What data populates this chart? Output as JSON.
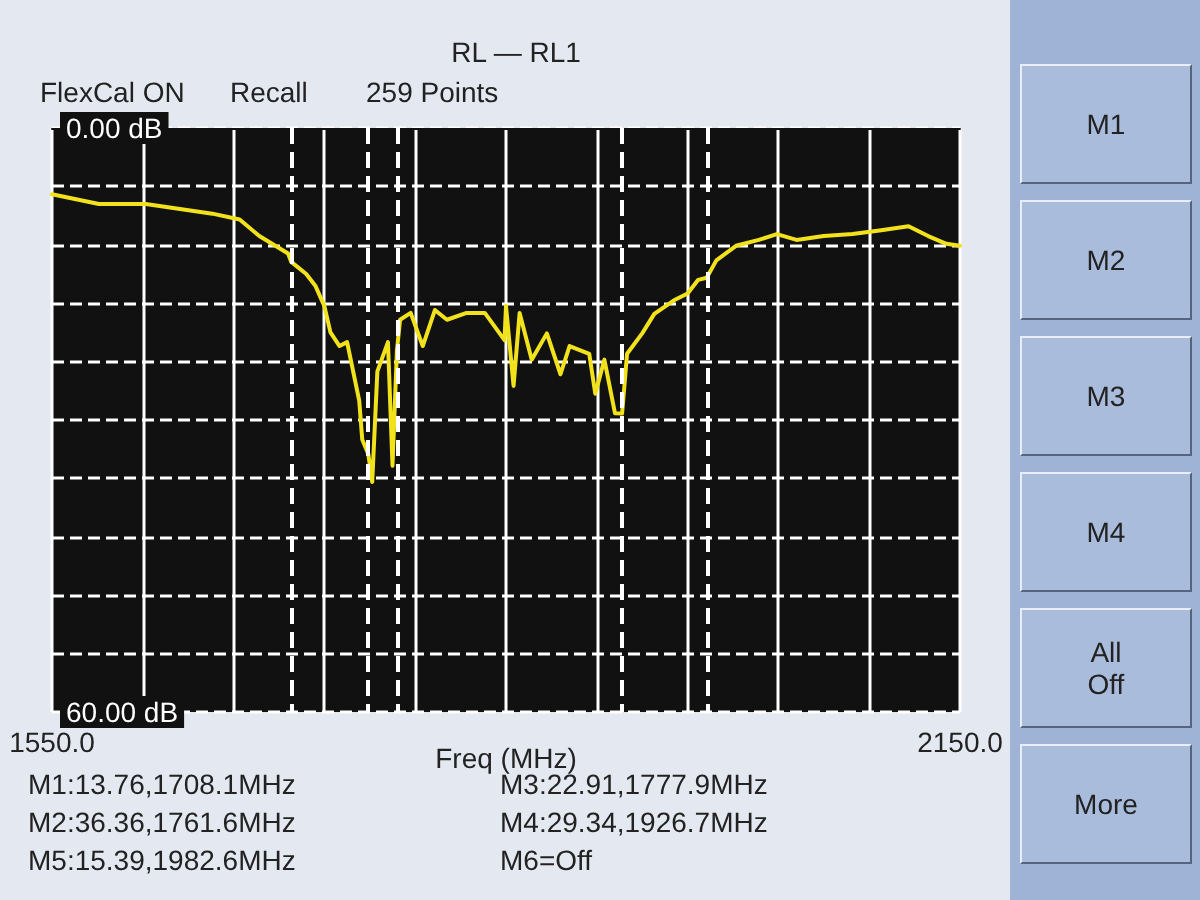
{
  "chart_data": {
    "type": "line",
    "title": "RL — RL1",
    "xlabel": "Freq (MHz)",
    "annotations": [
      "FlexCal ON",
      "Recall",
      "259 Points",
      "M1:13.76,1708.1MHz",
      "M3:22.91,1777.9MHz",
      "M2:36.36,1761.6MHz",
      "M4:29.34,1926.7MHz",
      "M5:15.39,1982.6MHz",
      "M6=Off",
      "M1",
      "M2",
      "M3",
      "M4",
      "All\nOff",
      "More"
    ],
    "x": [
      1550,
      1581,
      1612,
      1656,
      1674,
      1687,
      1706,
      1708.1,
      1718,
      1724,
      1730,
      1734,
      1740,
      1745,
      1753,
      1755,
      1759,
      1761.6,
      1765,
      1772,
      1775,
      1777.9,
      1780,
      1787,
      1795,
      1803,
      1811,
      1824,
      1836,
      1849,
      1850,
      1855,
      1859,
      1867,
      1877,
      1886,
      1892,
      1905,
      1909,
      1915,
      1922,
      1926.7,
      1930,
      1940,
      1948,
      1961,
      1970,
      1977,
      1982.6,
      1989,
      2002,
      2017,
      2029,
      2042,
      2060,
      2079,
      2098,
      2116,
      2129,
      2141,
      2150
    ],
    "series": [
      {
        "color": "#f2e21c",
        "values": [
          6.8,
          7.8,
          7.8,
          8.8,
          9.4,
          11.1,
          12.9,
          13.76,
          15,
          16.2,
          18.3,
          21,
          22.4,
          22,
          28,
          32,
          33.5,
          36.36,
          25,
          22,
          34.7,
          22.91,
          19.7,
          19,
          22.4,
          18.7,
          19.7,
          19,
          19,
          21.8,
          18.3,
          26.5,
          19,
          23.8,
          21.1,
          25.3,
          22.4,
          23.2,
          27.3,
          23.8,
          29.3,
          29.34,
          23.2,
          21.1,
          19.1,
          17.7,
          17,
          15.6,
          15.39,
          13.6,
          12.1,
          11.5,
          10.9,
          11.5,
          11.1,
          10.9,
          10.5,
          10.1,
          11.1,
          11.9,
          12.1
        ]
      }
    ],
    "xlim": [
      1550,
      2150
    ],
    "xticks": [
      {
        "value": 1550,
        "label": "1550.0"
      },
      {
        "value": 1610,
        "label": null
      },
      {
        "value": 1670,
        "label": null
      },
      {
        "value": 1730,
        "label": null
      },
      {
        "value": 1790,
        "label": null
      },
      {
        "value": 1850,
        "label": null
      },
      {
        "value": 1910,
        "label": null
      },
      {
        "value": 1970,
        "label": null
      },
      {
        "value": 2030,
        "label": null
      },
      {
        "value": 2090,
        "label": null
      },
      {
        "value": 2150,
        "label": "2150.0"
      }
    ],
    "ylim": [
      60,
      0
    ],
    "yticks": [
      {
        "value": 0,
        "label": "0.00 dB"
      },
      {
        "value": 6,
        "label": null
      },
      {
        "value": 12,
        "label": null
      },
      {
        "value": 18,
        "label": null
      },
      {
        "value": 24,
        "label": null
      },
      {
        "value": 30,
        "label": null
      },
      {
        "value": 36,
        "label": null
      },
      {
        "value": 42,
        "label": null
      },
      {
        "value": 48,
        "label": null
      },
      {
        "value": 54,
        "label": null
      },
      {
        "value": 60,
        "label": "60.00 dB"
      }
    ],
    "ref_lines": [
      {
        "axis": "x",
        "value": 1708.1,
        "color": "#ffffff",
        "line_style": "dashed"
      },
      {
        "axis": "x",
        "value": 1759,
        "color": "#ffffff",
        "line_style": "dashed"
      },
      {
        "axis": "x",
        "value": 1777.9,
        "color": "#ffffff",
        "line_style": "dashed"
      },
      {
        "axis": "x",
        "value": 1926.7,
        "color": "#ffffff",
        "line_style": "dashed"
      },
      {
        "axis": "x",
        "value": 1982.6,
        "color": "#ffffff",
        "line_style": "dashed"
      }
    ],
    "grid": true,
    "marker": "none",
    "line_style": "solid"
  }
}
